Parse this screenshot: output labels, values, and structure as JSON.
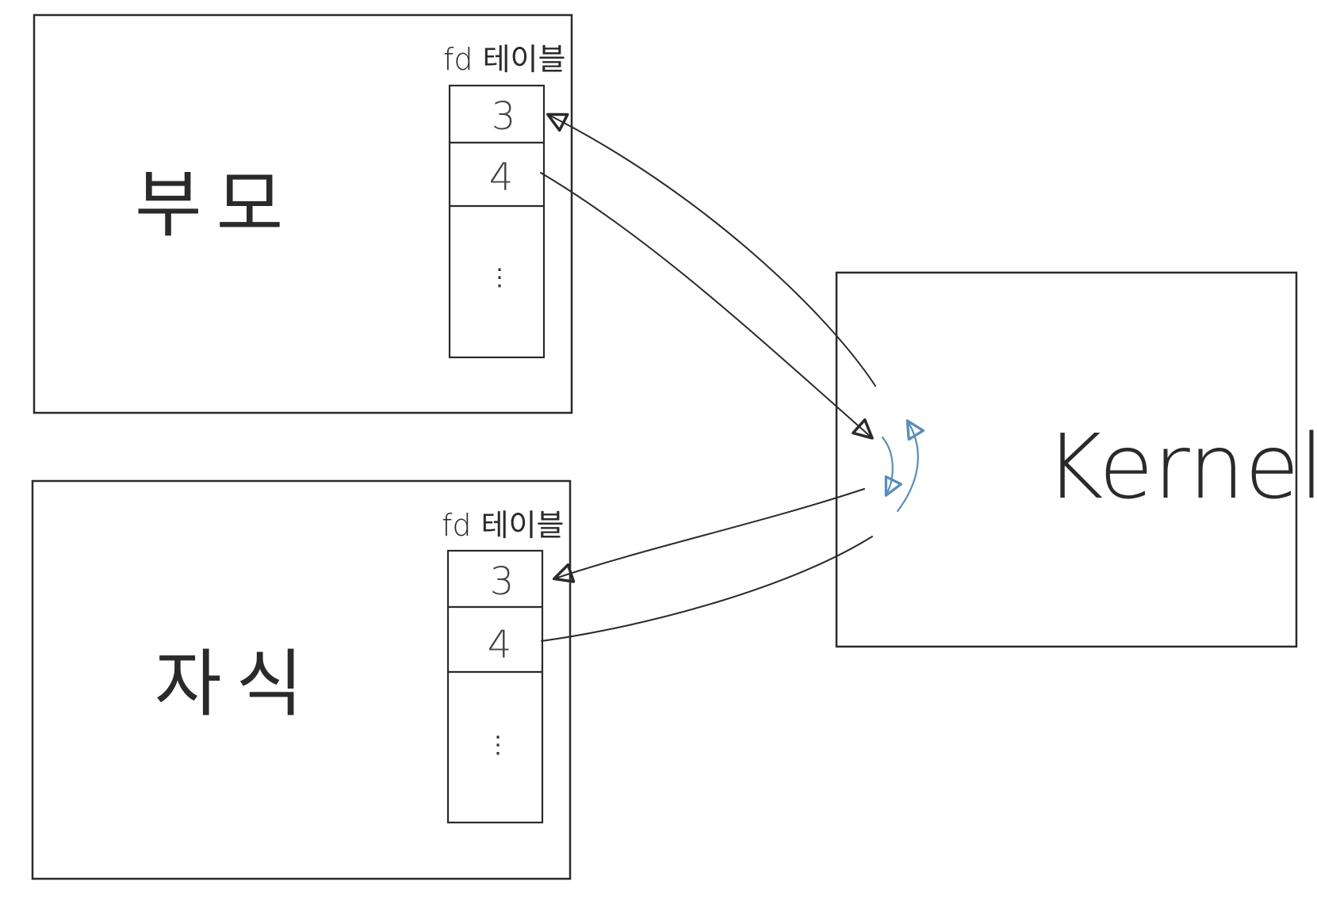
{
  "processes": {
    "parent": {
      "label": "부모",
      "table_title": "fd 테이블",
      "fd_entries": [
        "3",
        "4"
      ],
      "more": "⋮"
    },
    "child": {
      "label": "자식",
      "table_title": "fd 테이블",
      "fd_entries": [
        "3",
        "4"
      ],
      "more": "⋮"
    }
  },
  "kernel": {
    "label": "Kernel"
  },
  "colors": {
    "ink": "#2a2a2a",
    "pipe_flow": "#5b8db8"
  }
}
